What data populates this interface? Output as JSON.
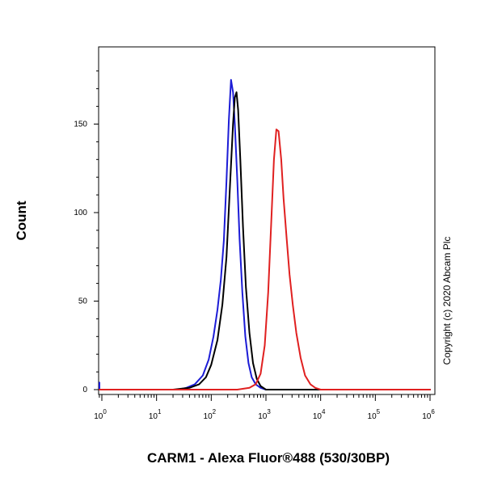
{
  "chart_data": {
    "type": "line",
    "title": "",
    "xlabel": "CARM1 - Alexa Fluor®488 (530/30BP)",
    "ylabel": "Count",
    "x_scale": "log",
    "xlim": [
      0.63,
      1000000
    ],
    "ylim": [
      0,
      190
    ],
    "y_ticks": [
      0,
      50,
      100,
      150
    ],
    "x_ticks": [
      {
        "base": "10",
        "exp": "0",
        "value": 1
      },
      {
        "base": "10",
        "exp": "1",
        "value": 10
      },
      {
        "base": "10",
        "exp": "2",
        "value": 100
      },
      {
        "base": "10",
        "exp": "3",
        "value": 1000
      },
      {
        "base": "10",
        "exp": "4",
        "value": 10000
      },
      {
        "base": "10",
        "exp": "5",
        "value": 100000
      },
      {
        "base": "10",
        "exp": "6",
        "value": 1000000
      }
    ],
    "grid": false,
    "legend": "none",
    "annotation": "Copyright (c) 2020 Abcam Plc",
    "series": [
      {
        "color": "#1c1cd6",
        "x": [
          0.63,
          0.68,
          0.75,
          0.9,
          2,
          10,
          25,
          35,
          50,
          70,
          90,
          110,
          130,
          150,
          170,
          190,
          210,
          230,
          250,
          270,
          300,
          330,
          370,
          420,
          480,
          550,
          650,
          800,
          1000,
          1500,
          1000000
        ],
        "y": [
          4,
          2,
          0.5,
          0,
          0,
          0,
          0,
          1,
          3,
          8,
          17,
          30,
          45,
          62,
          84,
          118,
          152,
          175,
          168,
          150,
          118,
          85,
          55,
          30,
          15,
          7,
          3,
          1,
          0,
          0,
          0
        ]
      },
      {
        "color": "#000000",
        "x": [
          0.63,
          20,
          40,
          60,
          80,
          100,
          130,
          160,
          190,
          220,
          250,
          270,
          290,
          310,
          340,
          380,
          430,
          500,
          580,
          680,
          800,
          1000,
          1500,
          1000000
        ],
        "y": [
          0,
          0,
          1,
          3,
          7,
          14,
          28,
          48,
          75,
          115,
          150,
          165,
          168,
          158,
          130,
          92,
          58,
          32,
          15,
          6,
          2,
          0,
          0,
          0
        ]
      },
      {
        "color": "#e02020",
        "x": [
          0.63,
          300,
          500,
          650,
          800,
          950,
          1100,
          1250,
          1400,
          1550,
          1700,
          1900,
          2100,
          2400,
          2700,
          3100,
          3600,
          4300,
          5200,
          6500,
          8000,
          10000,
          1000000
        ],
        "y": [
          0,
          0,
          1,
          3,
          9,
          25,
          55,
          95,
          130,
          147,
          146,
          130,
          108,
          85,
          65,
          48,
          32,
          18,
          8,
          3,
          1,
          0,
          0
        ]
      }
    ]
  }
}
